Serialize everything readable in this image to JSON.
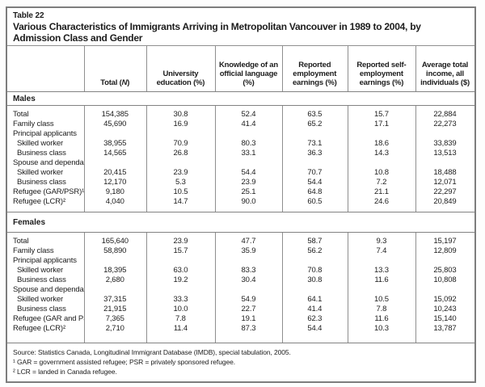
{
  "table": {
    "number": "Table 22",
    "title": "Various Characteristics of Immigrants Arriving in Metropolitan Vancouver in 1989 to 2004, by Admission Class and Gender",
    "columns": {
      "total_pre": "Total (",
      "total_n": "N",
      "total_post": ")",
      "headers": [
        "University education (%)",
        "Knowledge of an official language (%)",
        "Reported employment earnings (%)",
        "Reported self-employment earnings (%)",
        "Average total income, all individuals ($)"
      ]
    },
    "sections": [
      {
        "label": "Males",
        "rows": [
          {
            "label": "Total",
            "indent": false,
            "values": [
              "154,385",
              "30.8",
              "52.4",
              "63.5",
              "15.7",
              "22,884"
            ]
          },
          {
            "label": "Family class",
            "indent": false,
            "values": [
              "45,690",
              "16.9",
              "41.4",
              "65.2",
              "17.1",
              "22,273"
            ]
          },
          {
            "label": "Principal applicants",
            "indent": false,
            "values": [
              "",
              "",
              "",
              "",
              "",
              ""
            ]
          },
          {
            "label": "Skilled worker",
            "indent": true,
            "values": [
              "38,955",
              "70.9",
              "80.3",
              "73.1",
              "18.6",
              "33,839"
            ]
          },
          {
            "label": "Business class",
            "indent": true,
            "values": [
              "14,565",
              "26.8",
              "33.1",
              "36.3",
              "14.3",
              "13,513"
            ]
          },
          {
            "label": "Spouse and dependants",
            "indent": false,
            "values": [
              "",
              "",
              "",
              "",
              "",
              ""
            ]
          },
          {
            "label": "Skilled worker",
            "indent": true,
            "values": [
              "20,415",
              "23.9",
              "54.4",
              "70.7",
              "10.8",
              "18,488"
            ]
          },
          {
            "label": "Business class",
            "indent": true,
            "values": [
              "12,170",
              "5.3",
              "23.9",
              "54.4",
              "7.2",
              "12,071"
            ]
          },
          {
            "label": "Refugee (GAR/PSR)¹",
            "indent": false,
            "values": [
              "9,180",
              "10.5",
              "25.1",
              "64.8",
              "21.1",
              "22,297"
            ]
          },
          {
            "label": "Refugee (LCR)²",
            "indent": false,
            "values": [
              "4,040",
              "14.7",
              "90.0",
              "60.5",
              "24.6",
              "20,849"
            ]
          }
        ]
      },
      {
        "label": "Females",
        "rows": [
          {
            "label": "Total",
            "indent": false,
            "values": [
              "165,640",
              "23.9",
              "47.7",
              "58.7",
              "9.3",
              "15,197"
            ]
          },
          {
            "label": "Family class",
            "indent": false,
            "values": [
              "58,890",
              "15.7",
              "35.9",
              "56.2",
              "7.4",
              "12,809"
            ]
          },
          {
            "label": "Principal applicants",
            "indent": false,
            "values": [
              "",
              "",
              "",
              "",
              "",
              ""
            ]
          },
          {
            "label": "Skilled worker",
            "indent": true,
            "values": [
              "18,395",
              "63.0",
              "83.3",
              "70.8",
              "13.3",
              "25,803"
            ]
          },
          {
            "label": "Business class",
            "indent": true,
            "values": [
              "2,680",
              "19.2",
              "30.4",
              "30.8",
              "11.6",
              "10,808"
            ]
          },
          {
            "label": "Spouse and dependants",
            "indent": false,
            "values": [
              "",
              "",
              "",
              "",
              "",
              ""
            ]
          },
          {
            "label": "Skilled worker",
            "indent": true,
            "values": [
              "37,315",
              "33.3",
              "54.9",
              "64.1",
              "10.5",
              "15,092"
            ]
          },
          {
            "label": "Business class",
            "indent": true,
            "values": [
              "21,915",
              "10.0",
              "22.7",
              "41.4",
              "7.8",
              "10,243"
            ]
          },
          {
            "label": "Refugee (GAR and PSR)¹",
            "indent": false,
            "values": [
              "7,365",
              "7.8",
              "19.1",
              "62.3",
              "11.6",
              "15,140"
            ]
          },
          {
            "label": "Refugee (LCR)²",
            "indent": false,
            "values": [
              "2,710",
              "11.4",
              "87.3",
              "54.4",
              "10.3",
              "13,787"
            ]
          }
        ]
      }
    ],
    "footer": {
      "source": "Source: Statistics Canada, Longitudinal Immigrant Database (IMDB), special tabulation, 2005.",
      "note1": "¹ GAR = government assisted refugee; PSR = privately sponsored refugee.",
      "note2": "² LCR = landed in Canada refugee."
    }
  }
}
